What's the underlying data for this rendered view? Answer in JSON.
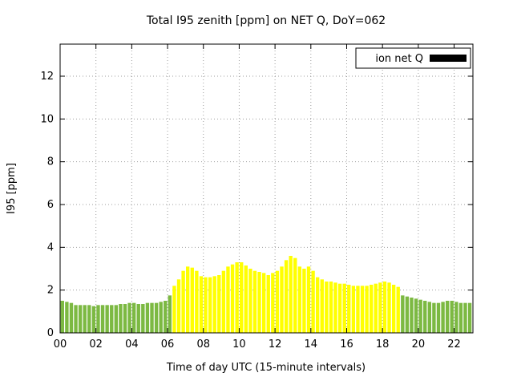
{
  "page": {
    "title": "Total I95 zenith [ppm] on NET Q, DoY=062"
  },
  "chart_data": {
    "type": "bar",
    "title": "Total I95 zenith [ppm] on NET Q, DoY=062",
    "xlabel": "Time of day UTC (15-minute intervals)",
    "ylabel": "I95 [ppm]",
    "grid": true,
    "legend": {
      "label": "ion net Q",
      "swatch_color": "#000000",
      "position": "top-right-inside"
    },
    "xlim": [
      0,
      23.05
    ],
    "ylim": [
      0,
      13.5
    ],
    "x_ticks": [
      {
        "v": 0,
        "label": "00"
      },
      {
        "v": 2,
        "label": "02"
      },
      {
        "v": 4,
        "label": "04"
      },
      {
        "v": 6,
        "label": "06"
      },
      {
        "v": 8,
        "label": "08"
      },
      {
        "v": 10,
        "label": "10"
      },
      {
        "v": 12,
        "label": "12"
      },
      {
        "v": 14,
        "label": "14"
      },
      {
        "v": 16,
        "label": "16"
      },
      {
        "v": 18,
        "label": "18"
      },
      {
        "v": 20,
        "label": "20"
      },
      {
        "v": 22,
        "label": "22"
      }
    ],
    "y_ticks": [
      0,
      2,
      4,
      6,
      8,
      10,
      12
    ],
    "interval_hours": 0.25,
    "bar_colors": {
      "green": "#7cb942",
      "yellow": "#ffff00"
    },
    "yellow_interval": [
      6.25,
      19.0
    ],
    "series": [
      {
        "name": "ion net Q",
        "start_time": "00:00",
        "step_minutes": 15,
        "values": [
          1.5,
          1.45,
          1.4,
          1.3,
          1.3,
          1.3,
          1.3,
          1.25,
          1.3,
          1.3,
          1.3,
          1.3,
          1.3,
          1.35,
          1.35,
          1.4,
          1.4,
          1.35,
          1.35,
          1.4,
          1.4,
          1.4,
          1.45,
          1.5,
          1.75,
          2.2,
          2.5,
          2.9,
          3.1,
          3.05,
          2.9,
          2.65,
          2.6,
          2.6,
          2.65,
          2.7,
          2.9,
          3.1,
          3.2,
          3.3,
          3.3,
          3.15,
          3.0,
          2.9,
          2.85,
          2.8,
          2.7,
          2.8,
          2.9,
          3.1,
          3.4,
          3.6,
          3.5,
          3.1,
          3.0,
          3.1,
          2.9,
          2.6,
          2.5,
          2.4,
          2.4,
          2.35,
          2.3,
          2.3,
          2.25,
          2.2,
          2.2,
          2.2,
          2.2,
          2.25,
          2.3,
          2.35,
          2.4,
          2.35,
          2.25,
          2.15,
          1.75,
          1.7,
          1.65,
          1.6,
          1.55,
          1.5,
          1.45,
          1.4,
          1.4,
          1.45,
          1.5,
          1.5,
          1.45,
          1.4,
          1.4,
          1.4
        ]
      }
    ]
  }
}
